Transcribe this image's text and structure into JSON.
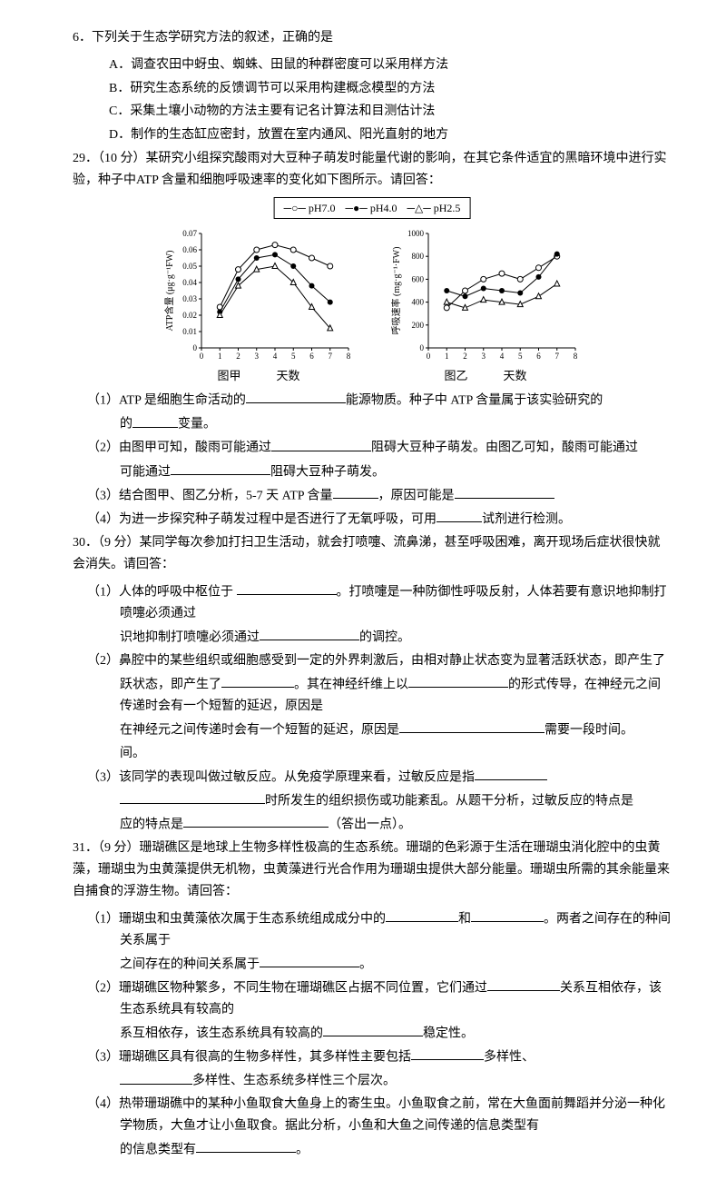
{
  "q6": {
    "number": "6．",
    "stem": "下列关于生态学研究方法的叙述，正确的是",
    "options": {
      "A": "A．调查农田中蚜虫、蜘蛛、田鼠的种群密度可以采用样方法",
      "B": "B．研究生态系统的反馈调节可以采用构建概念模型的方法",
      "C": "C．采集土壤小动物的方法主要有记名计算法和目测估计法",
      "D": "D．制作的生态缸应密封，放置在室内通风、阳光直射的地方"
    }
  },
  "q29": {
    "number": "29．（10 分）",
    "stem": "某研究小组探究酸雨对大豆种子萌发时能量代谢的影响，在其它条件适宜的黑暗环境中进行实验，种子中ATP 含量和细胞呼吸速率的变化如下图所示。请回答：",
    "legend": {
      "a": "pH7.0",
      "b": "pH4.0",
      "c": "pH2.5"
    },
    "chartA": {
      "type": "line",
      "xlabel": "天数",
      "ylabel": "ATP含量 (μg·g⁻¹FW)",
      "xlim": [
        0,
        8
      ],
      "ylim": [
        0,
        0.07
      ],
      "xticks": [
        0,
        1,
        2,
        3,
        4,
        5,
        6,
        7,
        8
      ],
      "yticks": [
        0,
        0.01,
        0.02,
        0.03,
        0.04,
        0.05,
        0.06,
        0.07
      ],
      "grid_color": "#000000",
      "bg": "#ffffff",
      "series": [
        {
          "name": "pH7.0",
          "marker": "open-circle",
          "color": "#000000",
          "x": [
            1,
            2,
            3,
            4,
            5,
            6,
            7
          ],
          "y": [
            0.025,
            0.048,
            0.06,
            0.063,
            0.06,
            0.055,
            0.05
          ]
        },
        {
          "name": "pH4.0",
          "marker": "filled-circle",
          "color": "#000000",
          "x": [
            1,
            2,
            3,
            4,
            5,
            6,
            7
          ],
          "y": [
            0.022,
            0.042,
            0.055,
            0.057,
            0.05,
            0.038,
            0.028
          ]
        },
        {
          "name": "pH2.5",
          "marker": "open-triangle",
          "color": "#000000",
          "x": [
            1,
            2,
            3,
            4,
            5,
            6,
            7
          ],
          "y": [
            0.02,
            0.038,
            0.048,
            0.05,
            0.04,
            0.025,
            0.012
          ]
        }
      ],
      "caption": "图甲"
    },
    "chartB": {
      "type": "line",
      "xlabel": "天数",
      "ylabel": "呼吸速率 (mg·g⁻¹·FW)",
      "xlim": [
        0,
        8
      ],
      "ylim": [
        0,
        1000
      ],
      "xticks": [
        0,
        1,
        2,
        3,
        4,
        5,
        6,
        7,
        8
      ],
      "yticks": [
        0,
        200,
        400,
        600,
        800,
        1000
      ],
      "grid_color": "#000000",
      "bg": "#ffffff",
      "series": [
        {
          "name": "pH7.0",
          "marker": "open-circle",
          "color": "#000000",
          "x": [
            1,
            2,
            3,
            4,
            5,
            6,
            7
          ],
          "y": [
            350,
            500,
            600,
            650,
            600,
            700,
            800
          ]
        },
        {
          "name": "pH4.0",
          "marker": "filled-circle",
          "color": "#000000",
          "x": [
            1,
            2,
            3,
            4,
            5,
            6,
            7
          ],
          "y": [
            500,
            450,
            520,
            500,
            480,
            620,
            820
          ]
        },
        {
          "name": "pH2.5",
          "marker": "open-triangle",
          "color": "#000000",
          "x": [
            1,
            2,
            3,
            4,
            5,
            6,
            7
          ],
          "y": [
            400,
            350,
            420,
            400,
            380,
            450,
            560
          ]
        }
      ],
      "caption": "图乙"
    },
    "p1a": "（1）ATP 是细胞生命活动的",
    "p1b": "能源物质。种子中 ATP 含量属于该实验研究的",
    "p1c": "变量。",
    "p2a": "（2）由图甲可知，酸雨可能通过",
    "p2b": "阻碍大豆种子萌发。由图乙可知，酸雨可能通过",
    "p2c": "阻碍大豆种子萌发。",
    "p3a": "（3）结合图甲、图乙分析，5-7 天 ATP 含量",
    "p3b": "，原因可能是",
    "p4a": "（4）为进一步探究种子萌发过程中是否进行了无氧呼吸，可用",
    "p4b": "试剂进行检测。"
  },
  "q30": {
    "number": "30．（9 分）",
    "stem": "某同学每次参加打扫卫生活动，就会打喷嚏、流鼻涕，甚至呼吸困难，离开现场后症状很快就会消失。请回答：",
    "p1a": "（1）人体的呼吸中枢位于 ",
    "p1b": "。打喷嚏是一种防御性呼吸反射，人体若要有意识地抑制打喷嚏必须通过",
    "p1c": "的调控。",
    "p2a": "（2）鼻腔中的某些组织或细胞感受到一定的外界刺激后，由相对静止状态变为显著活跃状态，即产生了",
    "p2b": "。其在神经纤维上以",
    "p2c": "的形式传导，在神经元之间传递时会有一个短暂的延迟，原因是",
    "p2d": "需要一段时间。",
    "p3a": "（3）该同学的表现叫做过敏反应。从免疫学原理来看，过敏反应是指",
    "p3b": "时所发生的组织损伤或功能紊乱。从题干分析，过敏反应的特点是",
    "p3c": "（答出一点）。"
  },
  "q31": {
    "number": "31．（9 分）",
    "stem": "珊瑚礁区是地球上生物多样性极高的生态系统。珊瑚的色彩源于生活在珊瑚虫消化腔中的虫黄藻，珊瑚虫为虫黄藻提供无机物，虫黄藻进行光合作用为珊瑚虫提供大部分能量。珊瑚虫所需的其余能量来自捕食的浮游生物。请回答：",
    "p1a": "（1）珊瑚虫和虫黄藻依次属于生态系统组成成分中的",
    "p1b": "和",
    "p1c": "。两者之间存在的种间关系属于",
    "p1d": "。",
    "p2a": "（2）珊瑚礁区物种繁多，不同生物在珊瑚礁区占据不同位置，它们通过",
    "p2b": "关系互相依存，该生态系统具有较高的",
    "p2c": "稳定性。",
    "p3a": "（3）珊瑚礁区具有很高的生物多样性，其多样性主要包括",
    "p3b": "多样性、",
    "p3c": "多样性、生态系统多样性三个层次。",
    "p4a": "（4）热带珊瑚礁中的某种小鱼取食大鱼身上的寄生虫。小鱼取食之前，常在大鱼面前舞蹈并分泌一种化学物质，大鱼才让小鱼取食。据此分析，小鱼和大鱼之间传递的信息类型有",
    "p4b": "。"
  }
}
